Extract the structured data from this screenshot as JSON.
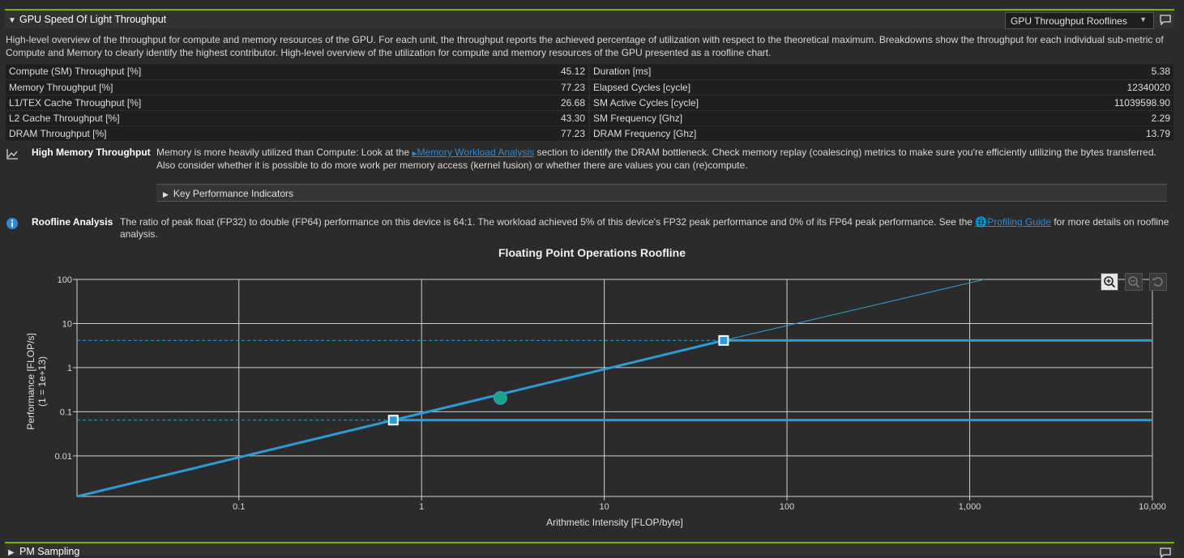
{
  "header": {
    "title": "GPU Speed Of Light Throughput",
    "dropdown_value": "GPU Throughput Rooflines",
    "description": "High-level overview of the throughput for compute and memory resources of the GPU. For each unit, the throughput reports the achieved percentage of utilization with respect to the theoretical maximum. Breakdowns show the throughput for each individual sub-metric of Compute and Memory to clearly identify the highest contributor. High-level overview of the utilization for compute and memory resources of the GPU presented as a roofline chart."
  },
  "metrics": {
    "left": [
      {
        "label": "Compute (SM) Throughput [%]",
        "value": "45.12"
      },
      {
        "label": "Memory Throughput [%]",
        "value": "77.23"
      },
      {
        "label": "L1/TEX Cache Throughput [%]",
        "value": "26.68"
      },
      {
        "label": "L2 Cache Throughput [%]",
        "value": "43.30"
      },
      {
        "label": "DRAM Throughput [%]",
        "value": "77.23"
      }
    ],
    "right": [
      {
        "label": "Duration [ms]",
        "value": "5.38"
      },
      {
        "label": "Elapsed Cycles [cycle]",
        "value": "12340020"
      },
      {
        "label": "SM Active Cycles [cycle]",
        "value": "11039598.90"
      },
      {
        "label": "SM Frequency [Ghz]",
        "value": "2.29"
      },
      {
        "label": "DRAM Frequency [Ghz]",
        "value": "13.79"
      }
    ]
  },
  "rule_memory": {
    "name": "High Memory Throughput",
    "text_before": "Memory is more heavily utilized than Compute: Look at the ",
    "link": "Memory Workload Analysis",
    "text_after": " section to identify the DRAM bottleneck. Check memory replay (coalescing) metrics to make sure you're efficiently utilizing the bytes transferred. Also consider whether it is possible to do more work per memory access (kernel fusion) or whether there are values you can (re)compute."
  },
  "kpi_label": "Key Performance Indicators",
  "rule_roofline": {
    "name": "Roofline Analysis",
    "text_before": "The ratio of peak float (FP32) to double (FP64) performance on this device is 64:1. The workload achieved 5% of this device's FP32 peak performance and 0% of its FP64 peak performance. See the ",
    "link": "Profiling Guide",
    "text_after": " for more details on roofline analysis."
  },
  "colors": {
    "roof": "#2e9bd6",
    "achieved": "#1aa58a",
    "accent": "#76b900"
  },
  "chart_data": {
    "type": "line",
    "title": "Floating Point Operations Roofline",
    "xlabel": "Arithmetic Intensity [FLOP/byte]",
    "ylabel": "Performance [FLOP/s]",
    "ylabel_scale": "(1 = 1e+13)",
    "xscale": "log",
    "yscale": "log",
    "xlim": [
      0.013,
      10000
    ],
    "ylim": [
      0.0012,
      100
    ],
    "x_ticks": [
      0.1,
      1,
      10,
      100,
      1000,
      10000
    ],
    "x_tick_labels": [
      "0.1",
      "1",
      "10",
      "100",
      "1,000",
      "10,000"
    ],
    "y_ticks": [
      0.01,
      0.1,
      1,
      10,
      100
    ],
    "y_tick_labels": [
      "0.01",
      "0.1",
      "1",
      "10",
      "100"
    ],
    "memory_slope": 0.092,
    "series": [
      {
        "name": "FP32 Peak",
        "ridge_x": 45.0,
        "peak": 4.13
      },
      {
        "name": "FP64 Peak",
        "ridge_x": 0.7,
        "peak": 0.0645
      }
    ],
    "achieved": {
      "name": "Achieved",
      "x": 2.7,
      "y": 0.205
    }
  },
  "next_section": {
    "title": "PM Sampling"
  }
}
